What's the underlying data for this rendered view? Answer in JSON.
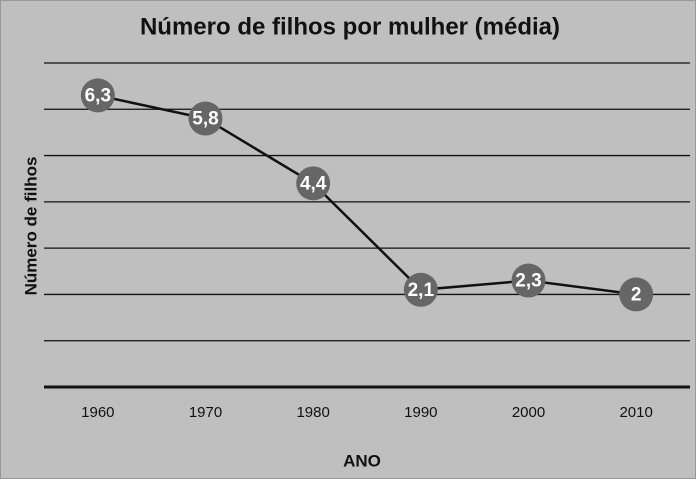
{
  "chart_data": {
    "type": "line",
    "title": "Número de filhos por mulher (média)",
    "y_label": "Número de filhos",
    "x_label": "ANO",
    "categories": [
      "1960",
      "1970",
      "1980",
      "1990",
      "2000",
      "2010"
    ],
    "values": [
      6.3,
      5.8,
      4.4,
      2.1,
      2.3,
      2
    ],
    "value_labels": [
      "6,3",
      "5,8",
      "4,4",
      "2,1",
      "2,3",
      "2"
    ],
    "color": "#111111",
    "marker_color": "#666666",
    "ylim": [
      0,
      7
    ],
    "yticks": [
      0,
      1,
      2,
      3,
      4,
      5,
      6,
      7
    ],
    "grid": true
  }
}
